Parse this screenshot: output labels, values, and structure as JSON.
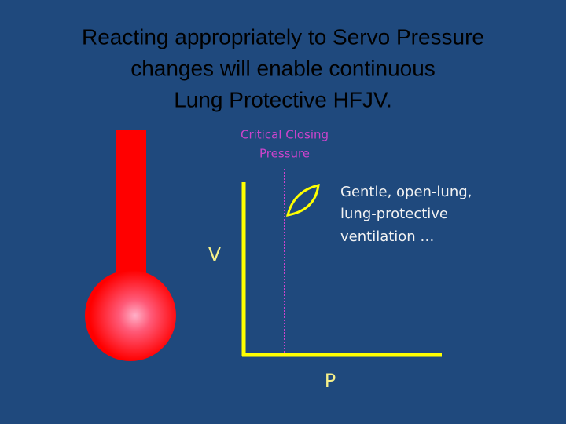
{
  "title": {
    "lines": [
      "Reacting appropriately to Servo Pressure",
      "changes will enable continuous",
      "Lung Protective HFJV."
    ]
  },
  "diagram": {
    "critical_label": {
      "lines": [
        "Critical Closing",
        "Pressure"
      ]
    },
    "note": {
      "lines": [
        "Gentle, open-lung,",
        "lung-protective",
        "ventilation …"
      ]
    },
    "y_axis_label": "V",
    "x_axis_label": "P"
  }
}
